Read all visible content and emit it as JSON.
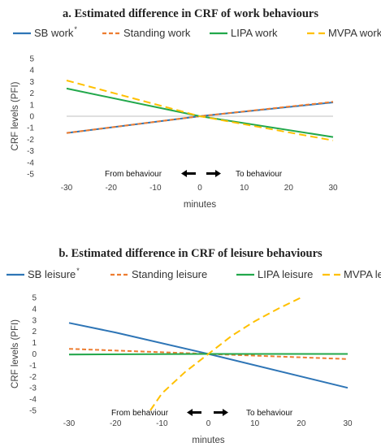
{
  "chart_data": [
    {
      "type": "line",
      "title": "a. Estimated difference in CRF of work behaviours",
      "xlabel": "minutes",
      "ylabel": "CRF levels (PFI)",
      "x": [
        -30,
        0,
        30
      ],
      "xticks": [
        -30,
        -20,
        -10,
        0,
        10,
        20,
        30
      ],
      "yticks": [
        5,
        4,
        3,
        2,
        1,
        0,
        -1,
        -2,
        -3,
        -4,
        -5
      ],
      "xlim": [
        -30,
        30
      ],
      "ylim": [
        -5,
        5
      ],
      "grid": false,
      "legend": "top",
      "annotations": {
        "from": "From  behaviour",
        "to": "To behaviour"
      },
      "series": [
        {
          "name": "SB work",
          "sup": "*",
          "color": "#2e75b6",
          "dash": "solid",
          "values": [
            -1.45,
            0,
            1.2
          ]
        },
        {
          "name": "Standing work",
          "sup": "",
          "color": "#ed7d31",
          "dash": "dash",
          "values": [
            -1.45,
            0,
            1.25
          ]
        },
        {
          "name": "LIPA work",
          "sup": "",
          "color": "#22a84b",
          "dash": "solid",
          "values": [
            2.4,
            0,
            -1.8
          ]
        },
        {
          "name": "MVPA work",
          "sup": "",
          "color": "#ffc000",
          "dash": "longdash",
          "values": [
            3.1,
            0,
            -2.1
          ]
        }
      ]
    },
    {
      "type": "line",
      "title": "b. Estimated difference in CRF of leisure behaviours",
      "xlabel": "minutes",
      "ylabel": "CRF levels (PFI)",
      "x": [
        -30,
        0,
        30
      ],
      "xticks": [
        -30,
        -20,
        -10,
        0,
        10,
        20,
        30
      ],
      "yticks": [
        5,
        4,
        3,
        2,
        1,
        0,
        -1,
        -2,
        -3,
        -4,
        -5
      ],
      "xlim": [
        -30,
        30
      ],
      "ylim": [
        -5,
        5
      ],
      "grid": false,
      "legend": "top",
      "annotations": {
        "from": "From  behaviour",
        "to": "To behaviour"
      },
      "series": [
        {
          "name": "SB leisure",
          "sup": "*",
          "color": "#2e75b6",
          "dash": "solid",
          "x": [
            -30,
            -20,
            0,
            30
          ],
          "values": [
            2.75,
            1.9,
            0,
            -3.0
          ]
        },
        {
          "name": "Standing leisure",
          "sup": "",
          "color": "#ed7d31",
          "dash": "dash",
          "x": [
            -30,
            0,
            30
          ],
          "values": [
            0.45,
            0,
            -0.45
          ]
        },
        {
          "name": "LIPA leisure",
          "sup": "",
          "color": "#22a84b",
          "dash": "solid",
          "x": [
            -30,
            0,
            30
          ],
          "values": [
            -0.05,
            0,
            0.0
          ]
        },
        {
          "name": "MVPA leisure",
          "sup": "*",
          "color": "#ffc000",
          "dash": "longdash",
          "x": [
            -12.5,
            -10,
            -5,
            0,
            5,
            10,
            15,
            20
          ],
          "values": [
            -5.0,
            -3.5,
            -1.6,
            0,
            1.6,
            2.9,
            4.0,
            5.0
          ]
        }
      ]
    }
  ]
}
